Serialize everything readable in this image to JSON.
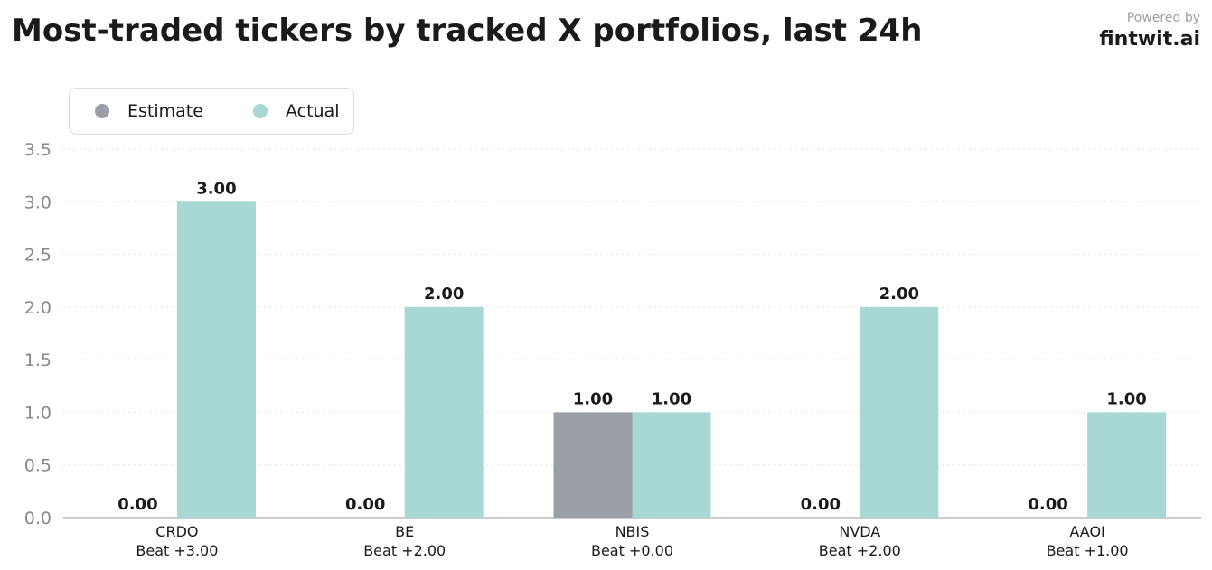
{
  "header": {
    "title": "Most-traded tickers by tracked X portfolios, last 24h",
    "powered_by": "Powered by",
    "brand": "fintwit.ai"
  },
  "colors": {
    "estimate": "#9a9fa6",
    "actual": "#a8d8d4",
    "text": "#1a1a1a",
    "tick": "#888888",
    "grid": "#e2e2e2",
    "axis": "#bbbbbb"
  },
  "chart_data": {
    "type": "bar",
    "title": "Most-traded tickers by tracked X portfolios, last 24h",
    "categories": [
      "CRDO",
      "BE",
      "NBIS",
      "NVDA",
      "AAOI"
    ],
    "category_sublabels": [
      "Beat +3.00",
      "Beat +2.00",
      "Beat +0.00",
      "Beat +2.00",
      "Beat +1.00"
    ],
    "series": [
      {
        "name": "Estimate",
        "values": [
          0,
          0,
          1,
          0,
          0
        ],
        "labels": [
          "0.00",
          "0.00",
          "1.00",
          "0.00",
          "0.00"
        ]
      },
      {
        "name": "Actual",
        "values": [
          3,
          2,
          1,
          2,
          1
        ],
        "labels": [
          "3.00",
          "2.00",
          "1.00",
          "2.00",
          "1.00"
        ]
      }
    ],
    "yticks": [
      "0.0",
      "0.5",
      "1.0",
      "1.5",
      "2.0",
      "2.5",
      "3.0",
      "3.5"
    ],
    "ylim": [
      0,
      3.5
    ],
    "xlabel": "",
    "ylabel": "",
    "grid": true,
    "legend_position": "top-left"
  }
}
